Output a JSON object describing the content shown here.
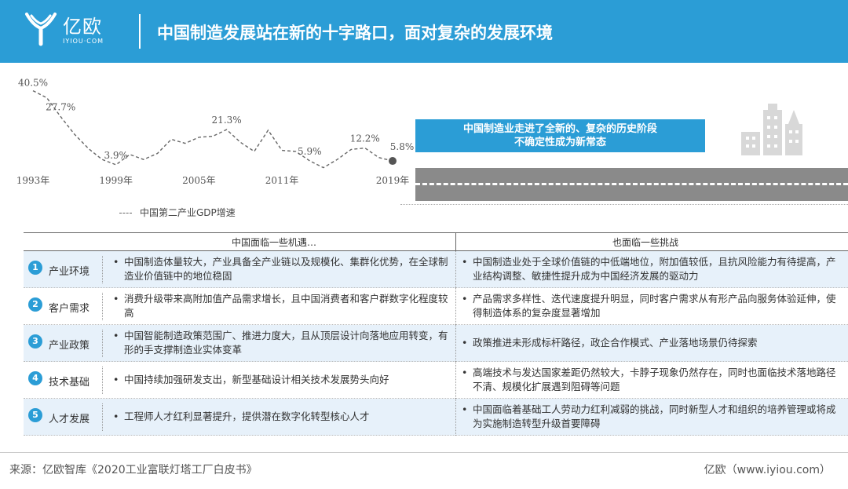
{
  "header": {
    "logo_text": "亿欧",
    "logo_sub": "IYIOU·COM",
    "title": "中国制造发展站在新的十字路口，面对复杂的发展环境"
  },
  "chart_data": {
    "type": "line",
    "x": [
      1993,
      1994,
      1995,
      1996,
      1997,
      1998,
      1999,
      2000,
      2001,
      2002,
      2003,
      2004,
      2005,
      2006,
      2007,
      2008,
      2009,
      2010,
      2011,
      2012,
      2013,
      2014,
      2015,
      2016,
      2017,
      2018,
      2019
    ],
    "y": [
      40.5,
      37.0,
      27.7,
      19.0,
      12.0,
      6.5,
      3.9,
      9.0,
      6.5,
      9.5,
      16.5,
      14.5,
      17.5,
      18.0,
      21.3,
      15.0,
      10.5,
      21.0,
      11.0,
      10.5,
      5.9,
      2.5,
      6.5,
      11.5,
      12.2,
      7.5,
      5.8
    ],
    "point_labels": [
      {
        "x": 1993,
        "text": "40.5%"
      },
      {
        "x": 1995,
        "text": "27.7%"
      },
      {
        "x": 1999,
        "text": "3.9%"
      },
      {
        "x": 2007,
        "text": "21.3%"
      },
      {
        "x": 2013,
        "text": "5.9%"
      },
      {
        "x": 2017,
        "text": "12.2%"
      },
      {
        "x": 2019,
        "text": "5.8%"
      }
    ],
    "xticks": [
      {
        "x": 1993,
        "label": "1993年"
      },
      {
        "x": 1999,
        "label": "1999年"
      },
      {
        "x": 2005,
        "label": "2005年"
      },
      {
        "x": 2011,
        "label": "2011年"
      },
      {
        "x": 2019,
        "label": "2019年"
      }
    ],
    "series_name": "中国第二产业GDP增速",
    "xlim": [
      1993,
      2019
    ],
    "ylim": [
      0,
      45
    ],
    "line_style": "dashed",
    "colors": {
      "line": "#666666",
      "end_dot": "#555555"
    }
  },
  "callout": {
    "line1": "中国制造业走进了全新的、复杂的历史阶段",
    "line2": "不确定性成为新常态"
  },
  "table": {
    "header_left": "中国面临一些机遇…",
    "header_right": "也面临一些挑战",
    "bullet": "•",
    "rows": [
      {
        "num": "1",
        "label": "产业环境",
        "left": "中国制造体量较大，产业具备全产业链以及规模化、集群化优势，在全球制造业价值链中的地位稳固",
        "right": "中国制造业处于全球价值链的中低端地位，附加值较低，且抗风险能力有待提高，产业结构调整、敏捷性提升成为中国经济发展的驱动力"
      },
      {
        "num": "2",
        "label": "客户需求",
        "left": "消费升级带来高附加值产品需求增长，且中国消费者和客户群数字化程度较高",
        "right": "产品需求多样性、迭代速度提升明显，同时客户需求从有形产品向服务体验延伸，使得制造体系的复杂度显著增加"
      },
      {
        "num": "3",
        "label": "产业政策",
        "left": "中国智能制造政策范围广、推进力度大，且从顶层设计向落地应用转变，有形的手支撑制造业实体变革",
        "right": "政策推进未形成标杆路径，政企合作模式、产业落地场景仍待探索"
      },
      {
        "num": "4",
        "label": "技术基础",
        "left": "中国持续加强研发支出，新型基础设计相关技术发展势头向好",
        "right": "高端技术与发达国家差距仍然较大，卡脖子现象仍然存在，同时也面临技术落地路径不清、规模化扩展遇到阻碍等问题"
      },
      {
        "num": "5",
        "label": "人才发展",
        "left": "工程师人才红利显著提升，提供潜在数字化转型核心人才",
        "right": "中国面临着基础工人劳动力红利减弱的挑战，同时新型人才和组织的培养管理或将成为实施制造转型升级首要障碍"
      }
    ]
  },
  "footer": {
    "source": "来源：亿欧智库《2020工业富联灯塔工厂白皮书》",
    "copyright": "亿欧（www.iyiou.com）"
  },
  "colors": {
    "brand": "#2b9dd6",
    "row_alt": "#e7f1fa",
    "road": "#8a8a8a",
    "buildings": "#d8d8d8"
  }
}
